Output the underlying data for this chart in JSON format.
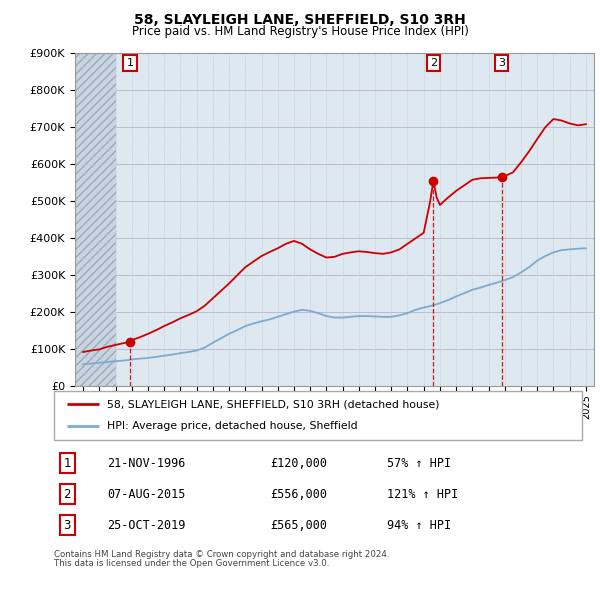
{
  "title": "58, SLAYLEIGH LANE, SHEFFIELD, S10 3RH",
  "subtitle": "Price paid vs. HM Land Registry's House Price Index (HPI)",
  "legend_line1": "58, SLAYLEIGH LANE, SHEFFIELD, S10 3RH (detached house)",
  "legend_line2": "HPI: Average price, detached house, Sheffield",
  "footer1": "Contains HM Land Registry data © Crown copyright and database right 2024.",
  "footer2": "This data is licensed under the Open Government Licence v3.0.",
  "ylim": [
    0,
    900000
  ],
  "yticks": [
    0,
    100000,
    200000,
    300000,
    400000,
    500000,
    600000,
    700000,
    800000,
    900000
  ],
  "ytick_labels": [
    "£0",
    "£100K",
    "£200K",
    "£300K",
    "£400K",
    "£500K",
    "£600K",
    "£700K",
    "£800K",
    "£900K"
  ],
  "xlim_start": 1993.5,
  "xlim_end": 2025.5,
  "hatch_end": 1996.0,
  "sale_points": [
    {
      "num": 1,
      "year": 1996.9,
      "price": 120000,
      "date": "21-NOV-1996",
      "price_str": "£120,000",
      "hpi_pct": "57% ↑ HPI"
    },
    {
      "num": 2,
      "year": 2015.6,
      "price": 556000,
      "date": "07-AUG-2015",
      "price_str": "£556,000",
      "hpi_pct": "121% ↑ HPI"
    },
    {
      "num": 3,
      "year": 2019.8,
      "price": 565000,
      "date": "25-OCT-2019",
      "price_str": "£565,000",
      "hpi_pct": "94% ↑ HPI"
    }
  ],
  "red_line_color": "#cc0000",
  "blue_line_color": "#7faacc",
  "chart_bg_color": "#dde8f0",
  "hatch_color": "#c0c8d8",
  "grid_color": "#bbbbcc",
  "number_box_color": "#cc0000",
  "hpi_years": [
    1994.0,
    1994.25,
    1994.5,
    1994.75,
    1995.0,
    1995.25,
    1995.5,
    1995.75,
    1996.0,
    1996.25,
    1996.5,
    1996.75,
    1997.0,
    1997.5,
    1998.0,
    1998.5,
    1999.0,
    1999.5,
    2000.0,
    2000.5,
    2001.0,
    2001.5,
    2002.0,
    2002.5,
    2003.0,
    2003.5,
    2004.0,
    2004.5,
    2005.0,
    2005.5,
    2006.0,
    2006.5,
    2007.0,
    2007.5,
    2008.0,
    2008.5,
    2009.0,
    2009.5,
    2010.0,
    2010.5,
    2011.0,
    2011.5,
    2012.0,
    2012.5,
    2013.0,
    2013.5,
    2014.0,
    2014.5,
    2015.0,
    2015.5,
    2016.0,
    2016.5,
    2017.0,
    2017.5,
    2018.0,
    2018.5,
    2019.0,
    2019.5,
    2020.0,
    2020.5,
    2021.0,
    2021.5,
    2022.0,
    2022.5,
    2023.0,
    2023.5,
    2024.0,
    2024.5,
    2025.0
  ],
  "hpi_values": [
    60000,
    61000,
    62000,
    63000,
    64000,
    65000,
    66000,
    67000,
    68000,
    69000,
    70000,
    71000,
    73000,
    75000,
    77000,
    80000,
    83000,
    86000,
    90000,
    93000,
    97000,
    105000,
    118000,
    130000,
    142000,
    152000,
    163000,
    170000,
    176000,
    181000,
    188000,
    195000,
    202000,
    207000,
    204000,
    198000,
    190000,
    186000,
    186000,
    188000,
    190000,
    190000,
    189000,
    188000,
    188000,
    192000,
    198000,
    207000,
    213000,
    218000,
    225000,
    233000,
    243000,
    252000,
    261000,
    267000,
    274000,
    280000,
    287000,
    295000,
    308000,
    322000,
    340000,
    352000,
    362000,
    368000,
    370000,
    372000,
    373000
  ],
  "red_years": [
    1994.0,
    1994.5,
    1995.0,
    1995.5,
    1996.0,
    1996.5,
    1996.9,
    1997.0,
    1997.5,
    1998.0,
    1998.5,
    1999.0,
    1999.5,
    2000.0,
    2000.5,
    2001.0,
    2001.5,
    2002.0,
    2002.5,
    2003.0,
    2003.5,
    2004.0,
    2004.5,
    2005.0,
    2005.5,
    2006.0,
    2006.5,
    2007.0,
    2007.5,
    2008.0,
    2008.5,
    2009.0,
    2009.5,
    2010.0,
    2010.5,
    2011.0,
    2011.5,
    2012.0,
    2012.5,
    2013.0,
    2013.5,
    2014.0,
    2014.5,
    2015.0,
    2015.4,
    2015.6,
    2015.8,
    2016.0,
    2016.5,
    2017.0,
    2017.5,
    2018.0,
    2018.5,
    2019.0,
    2019.5,
    2019.8,
    2020.0,
    2020.5,
    2021.0,
    2021.5,
    2022.0,
    2022.5,
    2023.0,
    2023.5,
    2024.0,
    2024.5,
    2025.0
  ],
  "red_values": [
    93000,
    97000,
    100000,
    107000,
    112000,
    117000,
    120000,
    125000,
    133000,
    142000,
    152000,
    163000,
    173000,
    184000,
    193000,
    203000,
    218000,
    238000,
    258000,
    278000,
    300000,
    322000,
    337000,
    352000,
    363000,
    373000,
    385000,
    393000,
    385000,
    370000,
    358000,
    348000,
    350000,
    358000,
    362000,
    365000,
    363000,
    360000,
    358000,
    362000,
    370000,
    385000,
    400000,
    415000,
    500000,
    556000,
    510000,
    490000,
    510000,
    528000,
    543000,
    558000,
    562000,
    563000,
    564000,
    565000,
    568000,
    578000,
    605000,
    635000,
    668000,
    700000,
    722000,
    718000,
    710000,
    705000,
    708000
  ]
}
